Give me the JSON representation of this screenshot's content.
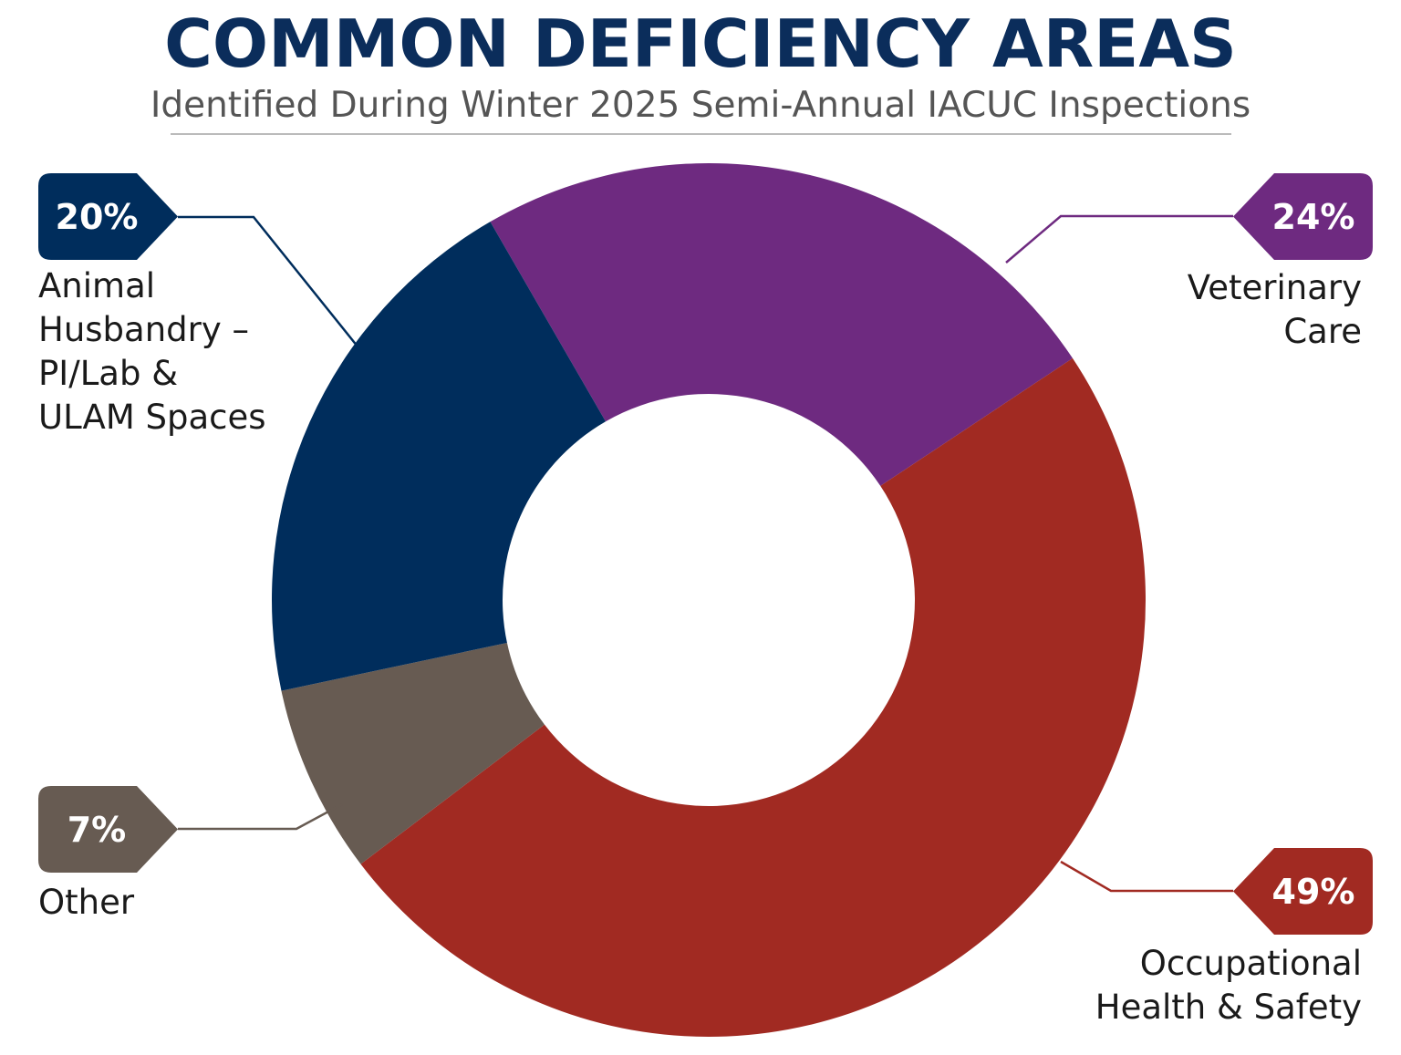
{
  "chart_data": {
    "type": "pie",
    "donut": true,
    "title": "COMMON DEFICIENCY AREAS",
    "subtitle": "Identified During Winter 2025 Semi-Annual IACUC Inspections",
    "slices": [
      {
        "label_lines": [
          "Veterinary",
          "Care"
        ],
        "value": 24,
        "value_label": "24%",
        "color": "#6e2a80"
      },
      {
        "label_lines": [
          "Occupational",
          "Health & Safety"
        ],
        "value": 49,
        "value_label": "49%",
        "color": "#a12a22"
      },
      {
        "label_lines": [
          "Other"
        ],
        "value": 7,
        "value_label": "7%",
        "color": "#675b52"
      },
      {
        "label_lines": [
          "Animal",
          "Husbandry –",
          "PI/Lab &",
          "ULAM Spaces"
        ],
        "value": 20,
        "value_label": "20%",
        "color": "#002d5c"
      }
    ]
  }
}
